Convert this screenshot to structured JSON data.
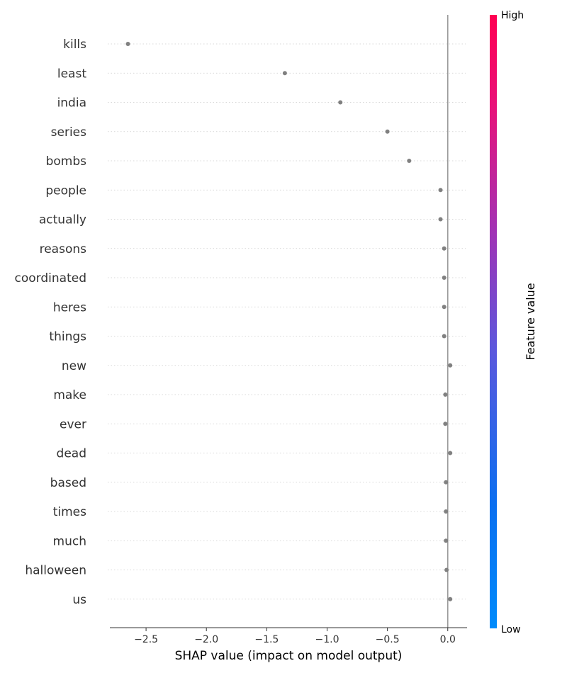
{
  "chart_data": {
    "type": "scatter",
    "title": "",
    "xlabel": "SHAP value (impact on model output)",
    "ylabel": "",
    "xlim": [
      -2.8,
      0.16
    ],
    "xticks": [
      -2.5,
      -2.0,
      -1.5,
      -1.0,
      -0.5,
      0.0
    ],
    "xtick_labels": [
      "−2.5",
      "−2.0",
      "−1.5",
      "−1.0",
      "−0.5",
      "0.0"
    ],
    "features": [
      "kills",
      "least",
      "india",
      "series",
      "bombs",
      "people",
      "actually",
      "reasons",
      "coordinated",
      "heres",
      "things",
      "new",
      "make",
      "ever",
      "dead",
      "based",
      "times",
      "much",
      "halloween",
      "us"
    ],
    "values": [
      -2.65,
      -1.35,
      -0.89,
      -0.5,
      -0.32,
      -0.06,
      -0.06,
      -0.03,
      -0.03,
      -0.03,
      -0.03,
      0.02,
      -0.02,
      -0.02,
      0.02,
      -0.015,
      -0.015,
      -0.015,
      -0.01,
      0.02
    ],
    "point_color": "#808080",
    "zero_line": 0.0,
    "grid": "horizontal dotted",
    "colorbar": {
      "title": "Feature value",
      "high_label": "High",
      "low_label": "Low",
      "high_color": "#ff0052",
      "mid_color": "#7b3fd3",
      "low_color": "#008bfb"
    }
  }
}
